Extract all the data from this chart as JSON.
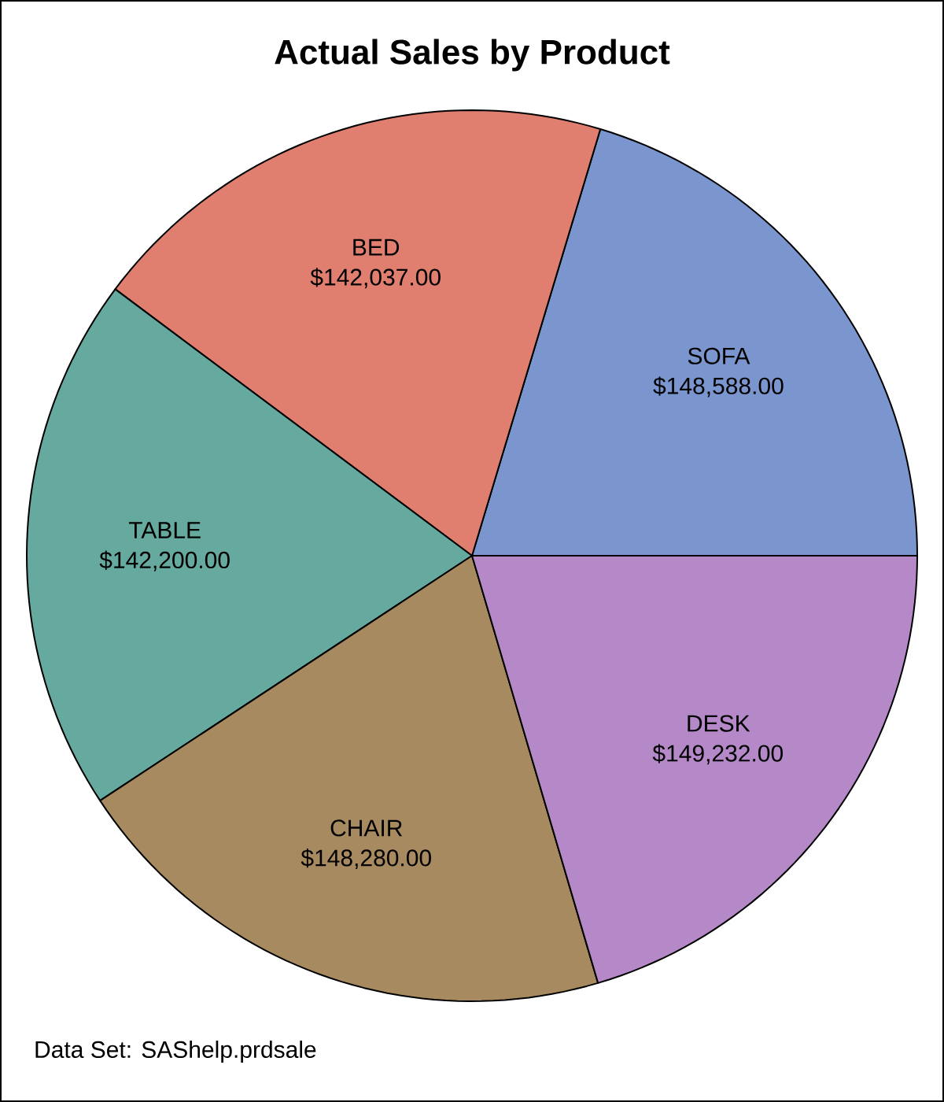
{
  "chart_data": {
    "type": "pie",
    "title": "Actual Sales by Product",
    "categories": [
      "SOFA",
      "BED",
      "TABLE",
      "CHAIR",
      "DESK"
    ],
    "values": [
      148588,
      142037,
      142200,
      148280,
      149232
    ],
    "value_labels": [
      "$148,588.00",
      "$142,037.00",
      "$142,200.00",
      "$148,280.00",
      "$149,232.00"
    ],
    "colors": [
      "#7b96cf",
      "#e07f6f",
      "#66aa9f",
      "#a88a60",
      "#b589c8"
    ],
    "annotations": [
      "Data Set: SAShelp.prdsale"
    ]
  }
}
